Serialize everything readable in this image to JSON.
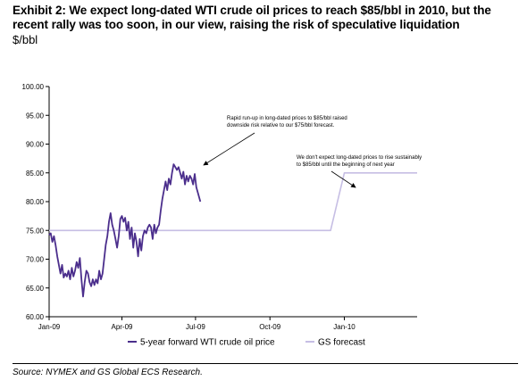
{
  "header": {
    "title_line1": "Exhibit 2:  We expect long-dated WTI crude oil prices to reach $85/bbl in 2010, but the",
    "title_line2": "recent rally was too soon, in our view, raising the risk of speculative liquidation",
    "unit": "$/bbl"
  },
  "footer": {
    "source": "Source: NYMEX and GS Global ECS Research."
  },
  "chart_data": {
    "type": "line",
    "ylim": [
      60,
      100
    ],
    "y_ticks": [
      "60.00",
      "65.00",
      "70.00",
      "75.00",
      "80.00",
      "85.00",
      "90.00",
      "95.00",
      "100.00"
    ],
    "x_ticks": [
      "Jan-09",
      "Apr-09",
      "Jul-09",
      "Oct-09",
      "Jan-10"
    ],
    "legend_position": "bottom",
    "grid": false,
    "series": [
      {
        "name": "5-year forward WTI crude oil price",
        "color": "#4B2E8C",
        "points": [
          [
            "2009-01-01",
            74.2
          ],
          [
            "2009-01-03",
            74.5
          ],
          [
            "2009-01-05",
            73.0
          ],
          [
            "2009-01-07",
            74.0
          ],
          [
            "2009-01-09",
            72.5
          ],
          [
            "2009-01-11",
            70.5
          ],
          [
            "2009-01-13",
            69.0
          ],
          [
            "2009-01-15",
            67.5
          ],
          [
            "2009-01-17",
            69.0
          ],
          [
            "2009-01-19",
            66.8
          ],
          [
            "2009-01-21",
            67.5
          ],
          [
            "2009-01-23",
            67.0
          ],
          [
            "2009-01-25",
            68.0
          ],
          [
            "2009-01-27",
            66.5
          ],
          [
            "2009-01-29",
            68.5
          ],
          [
            "2009-01-31",
            67.0
          ],
          [
            "2009-02-02",
            68.0
          ],
          [
            "2009-02-04",
            69.5
          ],
          [
            "2009-02-06",
            68.5
          ],
          [
            "2009-02-08",
            70.2
          ],
          [
            "2009-02-10",
            66.5
          ],
          [
            "2009-02-12",
            63.5
          ],
          [
            "2009-02-14",
            66.0
          ],
          [
            "2009-02-16",
            68.0
          ],
          [
            "2009-02-18",
            67.5
          ],
          [
            "2009-02-20",
            66.0
          ],
          [
            "2009-02-22",
            65.3
          ],
          [
            "2009-02-24",
            66.5
          ],
          [
            "2009-02-26",
            65.5
          ],
          [
            "2009-02-28",
            66.5
          ],
          [
            "2009-03-02",
            65.8
          ],
          [
            "2009-03-04",
            68.0
          ],
          [
            "2009-03-06",
            66.5
          ],
          [
            "2009-03-08",
            67.5
          ],
          [
            "2009-03-10",
            70.0
          ],
          [
            "2009-03-12",
            72.5
          ],
          [
            "2009-03-14",
            74.0
          ],
          [
            "2009-03-16",
            76.5
          ],
          [
            "2009-03-18",
            78.0
          ],
          [
            "2009-03-20",
            76.0
          ],
          [
            "2009-03-22",
            75.0
          ],
          [
            "2009-03-24",
            73.5
          ],
          [
            "2009-03-26",
            72.0
          ],
          [
            "2009-03-28",
            74.0
          ],
          [
            "2009-03-30",
            77.0
          ],
          [
            "2009-04-01",
            77.5
          ],
          [
            "2009-04-03",
            76.5
          ],
          [
            "2009-04-05",
            77.2
          ],
          [
            "2009-04-07",
            75.0
          ],
          [
            "2009-04-09",
            76.5
          ],
          [
            "2009-04-11",
            73.5
          ],
          [
            "2009-04-13",
            75.5
          ],
          [
            "2009-04-15",
            72.0
          ],
          [
            "2009-04-17",
            74.5
          ],
          [
            "2009-04-19",
            73.0
          ],
          [
            "2009-04-21",
            70.5
          ],
          [
            "2009-04-23",
            73.5
          ],
          [
            "2009-04-25",
            71.5
          ],
          [
            "2009-04-27",
            74.0
          ],
          [
            "2009-04-29",
            75.0
          ],
          [
            "2009-05-01",
            74.5
          ],
          [
            "2009-05-03",
            75.5
          ],
          [
            "2009-05-05",
            76.0
          ],
          [
            "2009-05-07",
            75.5
          ],
          [
            "2009-05-09",
            73.5
          ],
          [
            "2009-05-11",
            76.0
          ],
          [
            "2009-05-13",
            74.5
          ],
          [
            "2009-05-15",
            75.5
          ],
          [
            "2009-05-17",
            76.0
          ],
          [
            "2009-05-19",
            78.5
          ],
          [
            "2009-05-21",
            80.5
          ],
          [
            "2009-05-23",
            82.0
          ],
          [
            "2009-05-25",
            83.5
          ],
          [
            "2009-05-27",
            82.0
          ],
          [
            "2009-05-29",
            84.0
          ],
          [
            "2009-05-31",
            83.0
          ],
          [
            "2009-06-02",
            85.0
          ],
          [
            "2009-06-04",
            86.5
          ],
          [
            "2009-06-06",
            86.0
          ],
          [
            "2009-06-08",
            85.5
          ],
          [
            "2009-06-10",
            86.0
          ],
          [
            "2009-06-12",
            85.0
          ],
          [
            "2009-06-14",
            84.0
          ],
          [
            "2009-06-16",
            85.2
          ],
          [
            "2009-06-18",
            83.0
          ],
          [
            "2009-06-20",
            84.5
          ],
          [
            "2009-06-22",
            83.5
          ],
          [
            "2009-06-24",
            84.5
          ],
          [
            "2009-06-26",
            84.0
          ],
          [
            "2009-06-28",
            83.0
          ],
          [
            "2009-06-30",
            84.8
          ],
          [
            "2009-07-02",
            82.5
          ],
          [
            "2009-07-04",
            81.5
          ],
          [
            "2009-07-07",
            80.0
          ]
        ]
      },
      {
        "name": "GS forecast",
        "color": "#C6BEE4",
        "points": [
          [
            "2009-01-01",
            75
          ],
          [
            "2009-12-15",
            75
          ],
          [
            "2010-01-01",
            85
          ],
          [
            "2010-04-01",
            85
          ]
        ]
      }
    ],
    "annotations": [
      {
        "lines": [
          "Rapid run-up in long-dated prices to $85/bbl raised",
          "downside risk relative to our $75/bbl forecast."
        ]
      },
      {
        "lines": [
          "We don't expect long-dated prices to rise sustainably",
          "to $85/bbl until the beginning of next year"
        ]
      }
    ]
  }
}
